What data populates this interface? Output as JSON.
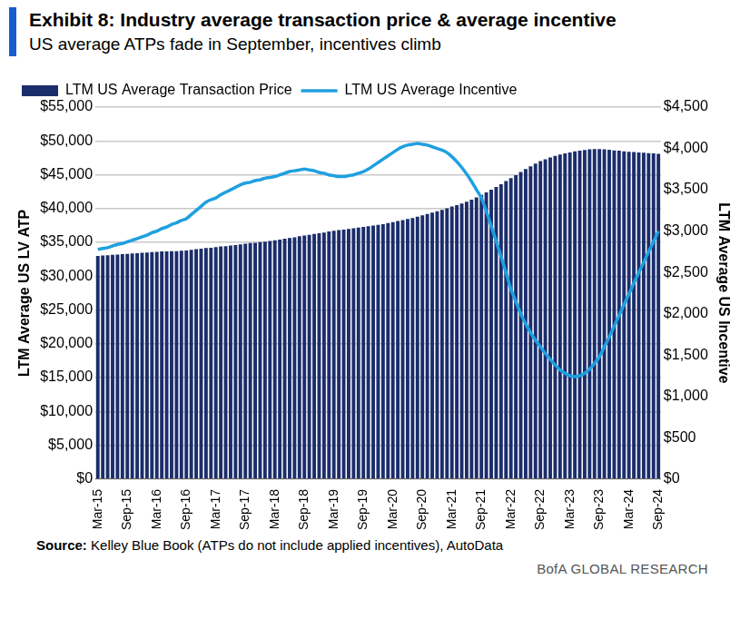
{
  "chart_data": {
    "type": "bar",
    "title": "Exhibit 8: Industry average transaction price & average incentive",
    "subtitle": "US average ATPs fade in September, incentives climb",
    "source_label": "Source:",
    "source": "Kelley Blue Book (ATPs do not include applied incentives), AutoData",
    "footer": "BofA GLOBAL RESEARCH",
    "ylabel": "LTM Average US LV ATP",
    "y2label": "LTM Average US Incentive",
    "legend": "upper left",
    "grid": true,
    "categories": [
      "Mar-15",
      null,
      null,
      null,
      null,
      null,
      "Sep-15",
      null,
      null,
      null,
      null,
      null,
      "Mar-16",
      null,
      null,
      null,
      null,
      null,
      "Sep-16",
      null,
      null,
      null,
      null,
      null,
      "Mar-17",
      null,
      null,
      null,
      null,
      null,
      "Sep-17",
      null,
      null,
      null,
      null,
      null,
      "Mar-18",
      null,
      null,
      null,
      null,
      null,
      "Sep-18",
      null,
      null,
      null,
      null,
      null,
      "Mar-19",
      null,
      null,
      null,
      null,
      null,
      "Sep-19",
      null,
      null,
      null,
      null,
      null,
      "Mar-20",
      null,
      null,
      null,
      null,
      null,
      "Sep-20",
      null,
      null,
      null,
      null,
      null,
      "Mar-21",
      null,
      null,
      null,
      null,
      null,
      "Sep-21",
      null,
      null,
      null,
      null,
      null,
      "Mar-22",
      null,
      null,
      null,
      null,
      null,
      "Sep-22",
      null,
      null,
      null,
      null,
      null,
      "Mar-23",
      null,
      null,
      null,
      null,
      null,
      "Sep-23",
      null,
      null,
      null,
      null,
      null,
      "Mar-24",
      null,
      null,
      null,
      null,
      null,
      "Sep-24"
    ],
    "series": [
      {
        "name": "LTM US Average Transaction Price",
        "type": "bar",
        "color": "#1b2d6b",
        "values": [
          33000,
          33050,
          33100,
          33150,
          33200,
          33250,
          33300,
          33350,
          33400,
          33450,
          33500,
          33550,
          33600,
          33650,
          33650,
          33700,
          33700,
          33750,
          33800,
          33900,
          34000,
          34050,
          34150,
          34200,
          34300,
          34400,
          34450,
          34550,
          34600,
          34700,
          34800,
          34900,
          34950,
          35050,
          35100,
          35200,
          35300,
          35400,
          35550,
          35650,
          35750,
          35900,
          36000,
          36100,
          36250,
          36350,
          36450,
          36600,
          36700,
          36800,
          36900,
          37000,
          37100,
          37200,
          37300,
          37400,
          37500,
          37600,
          37700,
          37850,
          38000,
          38150,
          38300,
          38450,
          38600,
          38800,
          39000,
          39200,
          39400,
          39600,
          39800,
          40050,
          40300,
          40500,
          40750,
          41000,
          41300,
          41650,
          42000,
          42400,
          42800,
          43200,
          43600,
          44050,
          44500,
          44950,
          45400,
          45850,
          46250,
          46650,
          47000,
          47300,
          47550,
          47800,
          48000,
          48150,
          48300,
          48450,
          48550,
          48650,
          48750,
          48800,
          48800,
          48750,
          48700,
          48600,
          48550,
          48450,
          48400,
          48350,
          48300,
          48250,
          48200,
          48150,
          48100
        ]
      },
      {
        "name": "LTM US Average Incentive",
        "type": "line",
        "color": "#1ea0e0",
        "axis": "y2",
        "values": [
          2780,
          2790,
          2800,
          2820,
          2840,
          2850,
          2870,
          2890,
          2910,
          2930,
          2950,
          2980,
          3000,
          3030,
          3050,
          3080,
          3100,
          3130,
          3150,
          3200,
          3250,
          3300,
          3350,
          3380,
          3400,
          3440,
          3470,
          3500,
          3530,
          3560,
          3580,
          3590,
          3610,
          3620,
          3640,
          3650,
          3660,
          3680,
          3700,
          3720,
          3730,
          3740,
          3750,
          3740,
          3730,
          3710,
          3700,
          3680,
          3670,
          3660,
          3660,
          3670,
          3680,
          3700,
          3720,
          3750,
          3790,
          3830,
          3870,
          3910,
          3950,
          3990,
          4020,
          4040,
          4050,
          4060,
          4050,
          4040,
          4020,
          4000,
          3980,
          3950,
          3900,
          3840,
          3770,
          3690,
          3600,
          3500,
          3400,
          3240,
          3060,
          2880,
          2690,
          2500,
          2300,
          2150,
          2000,
          1880,
          1770,
          1680,
          1600,
          1520,
          1450,
          1380,
          1320,
          1280,
          1250,
          1240,
          1250,
          1280,
          1330,
          1400,
          1480,
          1600,
          1720,
          1850,
          1980,
          2110,
          2240,
          2370,
          2500,
          2620,
          2750,
          2870,
          3000
        ]
      }
    ],
    "ylim": [
      0,
      55000
    ],
    "yticks": [
      {
        "value": 0,
        "label": "$0"
      },
      {
        "value": 5000,
        "label": "$5,000"
      },
      {
        "value": 10000,
        "label": "$10,000"
      },
      {
        "value": 15000,
        "label": "$15,000"
      },
      {
        "value": 20000,
        "label": "$20,000"
      },
      {
        "value": 25000,
        "label": "$25,000"
      },
      {
        "value": 30000,
        "label": "$30,000"
      },
      {
        "value": 35000,
        "label": "$35,000"
      },
      {
        "value": 40000,
        "label": "$40,000"
      },
      {
        "value": 45000,
        "label": "$45,000"
      },
      {
        "value": 50000,
        "label": "$50,000"
      },
      {
        "value": 55000,
        "label": "$55,000"
      }
    ],
    "y2lim": [
      0,
      4500
    ],
    "y2ticks": [
      {
        "value": 0,
        "label": "$0"
      },
      {
        "value": 500,
        "label": "$500"
      },
      {
        "value": 1000,
        "label": "$1,000"
      },
      {
        "value": 1500,
        "label": "$1,500"
      },
      {
        "value": 2000,
        "label": "$2,000"
      },
      {
        "value": 2500,
        "label": "$2,500"
      },
      {
        "value": 3000,
        "label": "$3,000"
      },
      {
        "value": 3500,
        "label": "$3,500"
      },
      {
        "value": 4000,
        "label": "$4,000"
      },
      {
        "value": 4500,
        "label": "$4,500"
      }
    ]
  }
}
